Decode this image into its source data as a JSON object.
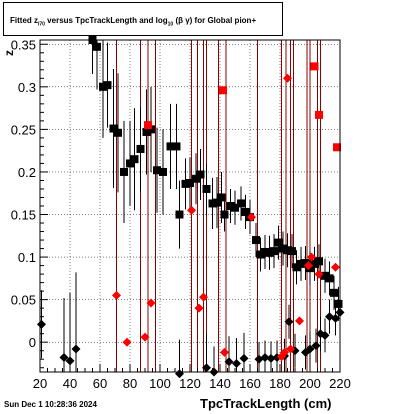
{
  "title": {
    "prefix": "Fitted  z",
    "sub1": "I70",
    "middle": "  versus TpcTrackLength and log",
    "sub2": "10",
    "suffix": "(β γ) for Global pion+"
  },
  "footer": {
    "timestamp": "Sun Dec  1 10:28:36 2024"
  },
  "colors": {
    "black_series": "#000000",
    "red_series": "#ff0000",
    "vline": "#8b0000",
    "grid": "#000000"
  },
  "chart_data": {
    "type": "scatter",
    "title": "Fitted z_I70 versus TpcTrackLength and log10(βγ) for Global pion+",
    "xlabel": "TpcTrackLength (cm)",
    "ylabel": "z",
    "xlim": [
      20,
      220
    ],
    "ylim": [
      -0.035,
      0.355
    ],
    "xticks": [
      20,
      40,
      60,
      80,
      100,
      120,
      140,
      160,
      180,
      200,
      220
    ],
    "yticks": [
      0,
      0.05,
      0.1,
      0.15,
      0.2,
      0.25,
      0.3,
      0.35
    ],
    "ytick_labels": [
      "0",
      "0.05",
      "0.1",
      "0.15",
      "0.2",
      "0.25",
      "0.3",
      "0.35"
    ],
    "grid": true,
    "vertical_lines_x": [
      71,
      87,
      92,
      97,
      121,
      125,
      129,
      131,
      139,
      144,
      165,
      181,
      184,
      187,
      189,
      198,
      200,
      205,
      207
    ],
    "series": [
      {
        "marker": "square",
        "color": "black",
        "points": [
          [
            55,
            0.355,
            0.04
          ],
          [
            58,
            0.347,
            0.05
          ],
          [
            62,
            0.3,
            0.06
          ],
          [
            65,
            0.302,
            0.05
          ],
          [
            69,
            0.251,
            0.07
          ],
          [
            72,
            0.246,
            0.07
          ],
          [
            76,
            0.2,
            0.06
          ],
          [
            80,
            0.21,
            0.05
          ],
          [
            83,
            0.215,
            0.06
          ],
          [
            87,
            0.227,
            0.05
          ],
          [
            91,
            0.247,
            0.05
          ],
          [
            94,
            0.25,
            0.05
          ],
          [
            98,
            0.202,
            0.05
          ],
          [
            102,
            0.2,
            0.05
          ],
          [
            107,
            0.23,
            0.05
          ],
          [
            111,
            0.23,
            0.05
          ],
          [
            113,
            0.15,
            0.04
          ],
          [
            117,
            0.186,
            0.03
          ],
          [
            120,
            0.187,
            0.03
          ],
          [
            124,
            0.192,
            0.03
          ],
          [
            127,
            0.197,
            0.03
          ],
          [
            131,
            0.18,
            0.03
          ],
          [
            135,
            0.163,
            0.03
          ],
          [
            138,
            0.164,
            0.03
          ],
          [
            141,
            0.17,
            0.03
          ],
          [
            143,
            0.15,
            0.02
          ],
          [
            147,
            0.16,
            0.02
          ],
          [
            150,
            0.158,
            0.02
          ],
          [
            154,
            0.163,
            0.02
          ],
          [
            157,
            0.153,
            0.02
          ],
          [
            160,
            0.147,
            0.02
          ],
          [
            164,
            0.12,
            0.02
          ],
          [
            167,
            0.103,
            0.02
          ],
          [
            170,
            0.106,
            0.02
          ],
          [
            173,
            0.105,
            0.02
          ],
          [
            176,
            0.107,
            0.02
          ],
          [
            179,
            0.117,
            0.02
          ],
          [
            182,
            0.11,
            0.02
          ],
          [
            185,
            0.108,
            0.02
          ],
          [
            188,
            0.107,
            0.02
          ],
          [
            191,
            0.088,
            0.02
          ],
          [
            194,
            0.092,
            0.02
          ],
          [
            197,
            0.093,
            0.02
          ],
          [
            200,
            0.087,
            0.02
          ],
          [
            203,
            0.092,
            0.02
          ],
          [
            206,
            0.095,
            0.02
          ],
          [
            210,
            0.078,
            0.02
          ],
          [
            213,
            0.075,
            0.02
          ],
          [
            216,
            0.058,
            0.02
          ],
          [
            219,
            0.045,
            0.02
          ]
        ]
      },
      {
        "marker": "diamond",
        "color": "black",
        "points": [
          [
            21,
            0.021,
            0.04
          ],
          [
            36,
            -0.018,
            0.07
          ],
          [
            40,
            -0.022,
            0.08
          ],
          [
            44,
            -0.008,
            0.09
          ],
          [
            113,
            -0.037,
            0.04
          ],
          [
            131,
            -0.03,
            0.04
          ],
          [
            136,
            -0.035,
            0.03
          ],
          [
            146,
            -0.023,
            0.03
          ],
          [
            151,
            -0.025,
            0.03
          ],
          [
            156,
            -0.019,
            0.03
          ],
          [
            166,
            -0.02,
            0.02
          ],
          [
            170,
            -0.018,
            0.02
          ],
          [
            174,
            -0.019,
            0.02
          ],
          [
            178,
            -0.018,
            0.02
          ],
          [
            183,
            -0.016,
            0.02
          ],
          [
            186,
            0.024,
            0.02
          ],
          [
            190,
            -0.01,
            0.02
          ],
          [
            197,
            -0.012,
            0.02
          ],
          [
            200,
            -0.008,
            0.02
          ],
          [
            204,
            -0.004,
            0.02
          ],
          [
            207,
            0.01,
            0.02
          ],
          [
            210,
            0.008,
            0.02
          ],
          [
            213,
            0.03,
            0.02
          ],
          [
            217,
            0.028,
            0.02
          ],
          [
            220,
            0.035,
            0.02
          ]
        ]
      },
      {
        "marker": "square",
        "color": "red",
        "points": [
          [
            92,
            0.255
          ],
          [
            142,
            0.296
          ],
          [
            203,
            0.324
          ],
          [
            206,
            0.267
          ],
          [
            218,
            0.229
          ]
        ]
      },
      {
        "marker": "diamond",
        "color": "red",
        "points": [
          [
            71,
            0.055
          ],
          [
            78,
            0.0
          ],
          [
            90,
            0.006
          ],
          [
            94,
            0.046
          ],
          [
            121,
            0.155
          ],
          [
            126,
            0.04
          ],
          [
            129,
            0.053
          ],
          [
            143,
            -0.012
          ],
          [
            161,
            0.147
          ],
          [
            181,
            -0.017
          ],
          [
            185,
            0.31
          ],
          [
            187,
            -0.008
          ],
          [
            193,
            0.025
          ],
          [
            201,
            0.1
          ],
          [
            206,
            0.08
          ],
          [
            217,
            0.088
          ],
          [
            183,
            -0.012
          ],
          [
            199,
            0.09
          ]
        ]
      }
    ]
  }
}
